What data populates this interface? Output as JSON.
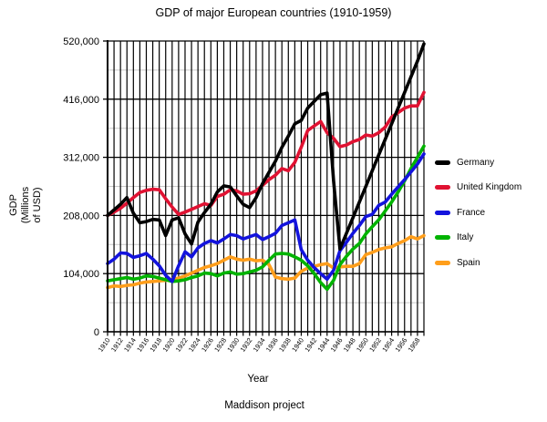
{
  "title": "GDP of major European countries (1910-1959)",
  "x_axis_label": "Year",
  "caption": "Maddison project",
  "y_axis_label_lines": [
    "GDP",
    "(Millions",
    "of USD)"
  ],
  "chart_data": {
    "type": "line",
    "title": "GDP of major European countries (1910-1959)",
    "xlabel": "Year",
    "ylabel": "GDP (Millions of USD)",
    "source_caption": "Maddison project",
    "legend_position": "right",
    "grid": {
      "vertical_every_year": true,
      "major_color": "#000000",
      "minor_color": "#c9c9c9"
    },
    "ylim": [
      0,
      520000
    ],
    "y_major_ticks": [
      0,
      104000,
      208000,
      312000,
      416000,
      520000
    ],
    "y_tick_labels": [
      "0",
      "104,000",
      "208,000",
      "312,000",
      "416,000",
      "520,000"
    ],
    "y_minor_ticks": [
      52000,
      156000,
      260000,
      364000,
      468000
    ],
    "x": [
      1910,
      1911,
      1912,
      1913,
      1914,
      1915,
      1916,
      1917,
      1918,
      1919,
      1920,
      1921,
      1922,
      1923,
      1924,
      1925,
      1926,
      1927,
      1928,
      1929,
      1930,
      1931,
      1932,
      1933,
      1934,
      1935,
      1936,
      1937,
      1938,
      1939,
      1940,
      1941,
      1942,
      1943,
      1944,
      1945,
      1946,
      1947,
      1948,
      1949,
      1950,
      1951,
      1952,
      1953,
      1954,
      1955,
      1956,
      1957,
      1958,
      1959
    ],
    "x_tick_labels": [
      "1910",
      "1912",
      "1914",
      "1916",
      "1918",
      "1920",
      "1922",
      "1924",
      "1926",
      "1928",
      "1930",
      "1932",
      "1934",
      "1936",
      "1938",
      "1940",
      "1942",
      "1944",
      "1946",
      "1948",
      "1950",
      "1952",
      "1954",
      "1956",
      "1958"
    ],
    "series": [
      {
        "name": "Germany",
        "color": "#000000",
        "values": [
          208000,
          218000,
          228000,
          240000,
          212000,
          195000,
          197000,
          201000,
          200000,
          172000,
          200000,
          204000,
          175000,
          157000,
          196000,
          213000,
          228000,
          250000,
          261000,
          259000,
          243000,
          228000,
          222000,
          240000,
          265000,
          285000,
          305000,
          330000,
          350000,
          372000,
          378000,
          400000,
          412000,
          424000,
          427000,
          270000,
          148000,
          176000,
          204000,
          232000,
          260000,
          288000,
          316000,
          344000,
          372000,
          400000,
          428000,
          456000,
          484000,
          515000
        ]
      },
      {
        "name": "United Kingdom",
        "color": "#e01232",
        "values": [
          208000,
          214000,
          221000,
          230000,
          240000,
          249000,
          253000,
          255000,
          254000,
          238000,
          223000,
          210000,
          214000,
          219000,
          224000,
          229000,
          226000,
          242000,
          246000,
          254000,
          252000,
          246000,
          247000,
          252000,
          262000,
          272000,
          280000,
          292000,
          288000,
          303000,
          330000,
          360000,
          368000,
          376000,
          356000,
          346000,
          331000,
          334000,
          340000,
          344000,
          352000,
          350000,
          356000,
          366000,
          384000,
          392000,
          400000,
          404000,
          404000,
          428000
        ]
      },
      {
        "name": "France",
        "color": "#1313dd",
        "values": [
          122000,
          130000,
          141000,
          140000,
          133000,
          136000,
          140000,
          130000,
          118000,
          101000,
          90000,
          118000,
          143000,
          134000,
          150000,
          158000,
          163000,
          159000,
          166000,
          174000,
          172000,
          166000,
          170000,
          174000,
          165000,
          170000,
          176000,
          190000,
          195000,
          200000,
          147000,
          128000,
          115000,
          104000,
          94000,
          110000,
          145000,
          160000,
          176000,
          190000,
          206000,
          210000,
          226000,
          232000,
          246000,
          259000,
          272000,
          286000,
          300000,
          318000
        ]
      },
      {
        "name": "Italy",
        "color": "#00b300",
        "values": [
          91000,
          93000,
          95000,
          97000,
          94000,
          96000,
          100000,
          99000,
          96000,
          93000,
          90000,
          91000,
          93000,
          97000,
          100000,
          105000,
          104000,
          100000,
          105000,
          107000,
          103000,
          104000,
          107000,
          110000,
          116000,
          128000,
          139000,
          140000,
          139000,
          134000,
          128000,
          118000,
          104000,
          88000,
          76000,
          92000,
          120000,
          135000,
          148000,
          158000,
          175000,
          188000,
          200000,
          216000,
          232000,
          250000,
          270000,
          292000,
          312000,
          332000
        ]
      },
      {
        "name": "Spain",
        "color": "#ff9e1b",
        "values": [
          79000,
          82000,
          81000,
          83000,
          84000,
          87000,
          89000,
          90000,
          91000,
          92000,
          94000,
          96000,
          100000,
          105000,
          110000,
          115000,
          118000,
          122000,
          128000,
          134000,
          130000,
          128000,
          130000,
          127000,
          128000,
          120000,
          98000,
          95000,
          94000,
          96000,
          108000,
          114000,
          117000,
          120000,
          122000,
          114000,
          116000,
          117000,
          117000,
          122000,
          138000,
          142000,
          147000,
          150000,
          152000,
          158000,
          163000,
          170000,
          166000,
          172000
        ]
      }
    ]
  }
}
